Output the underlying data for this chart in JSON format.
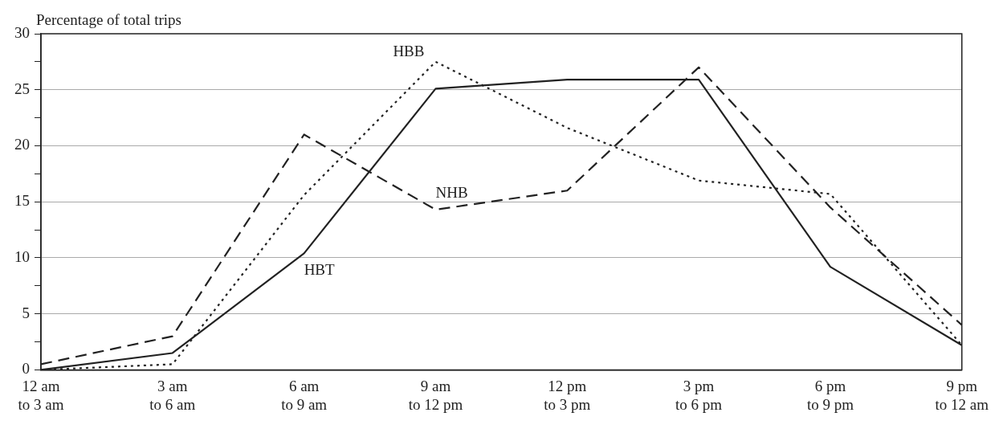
{
  "chart_data": {
    "type": "line",
    "ylabel": "Percentage of total trips",
    "categories": [
      "12 am to 3 am",
      "3 am to 6 am",
      "6 am to 9 am",
      "9 am to 12 pm",
      "12 pm to 3 pm",
      "3 pm to 6 pm",
      "6 pm to 9 pm",
      "9 pm to 12 am"
    ],
    "series": [
      {
        "name": "HBT",
        "color": "#222222",
        "line_style": "solid",
        "values": [
          0,
          1.5,
          10.4,
          25.1,
          25.9,
          25.9,
          9.2,
          2.2
        ]
      },
      {
        "name": "HBB",
        "color": "#222222",
        "line_style": "dotted",
        "values": [
          0,
          0.5,
          15.6,
          27.5,
          21.6,
          16.9,
          15.7,
          2.2
        ]
      },
      {
        "name": "NHB",
        "color": "#222222",
        "line_style": "dashed",
        "values": [
          0.5,
          3.0,
          21.0,
          14.3,
          16.0,
          27.0,
          14.5,
          4.0
        ]
      }
    ],
    "ylim": [
      0,
      30
    ],
    "yticks": [
      0,
      {
        "value": 2.5,
        "label": null
      },
      5,
      {
        "value": 7.5,
        "label": null
      },
      10,
      {
        "value": 12.5,
        "label": null
      },
      15,
      {
        "value": 17.5,
        "label": null
      },
      20,
      {
        "value": 22.5,
        "label": null
      },
      25,
      {
        "value": 27.5,
        "label": null
      },
      30
    ],
    "grid": "y",
    "legend": false,
    "marker": "none"
  }
}
